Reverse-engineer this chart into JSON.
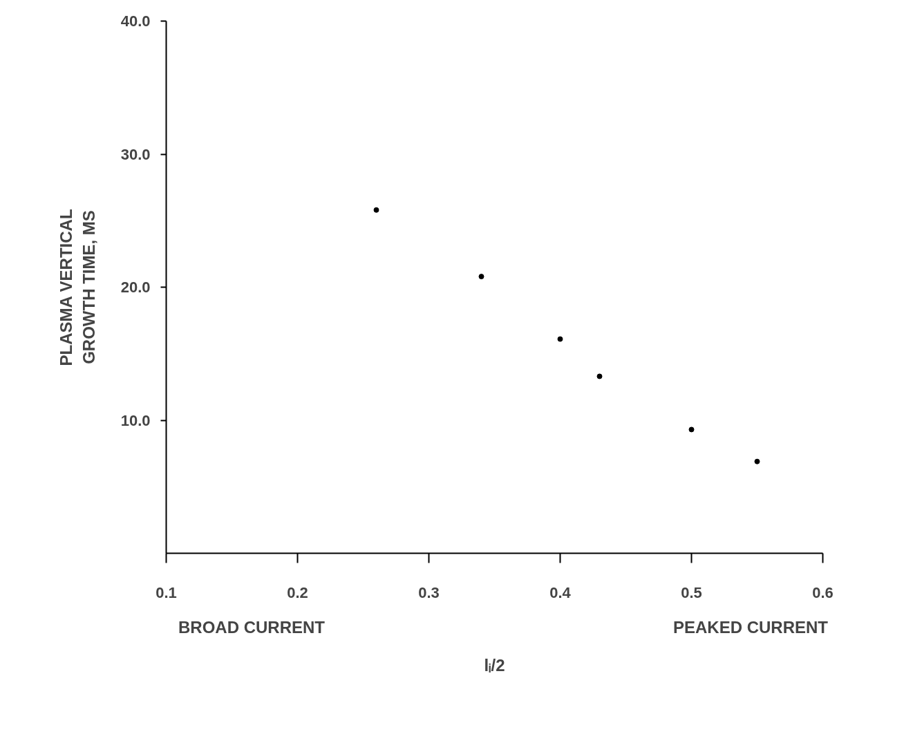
{
  "chart_data": {
    "type": "scatter",
    "xlabel": "lᵢ/2",
    "ylabel": "PLASMA VERTICAL\nGROWTH TIME, MS",
    "x": [
      0.26,
      0.34,
      0.4,
      0.43,
      0.5,
      0.55
    ],
    "values": [
      25.8,
      20.8,
      16.1,
      13.3,
      9.3,
      6.9
    ],
    "color": "#000000",
    "marker": "circle",
    "xlim": [
      0.1,
      0.6
    ],
    "ylim": [
      0,
      40
    ],
    "xticks": [
      0.1,
      0.2,
      0.3,
      0.4,
      0.5,
      0.6
    ],
    "yticks": [
      {
        "value": 10,
        "label": "10.0"
      },
      {
        "value": 20,
        "label": "20.0"
      },
      {
        "value": 30,
        "label": "30.0"
      },
      {
        "value": 40,
        "label": "40.0"
      }
    ],
    "grid": false,
    "annotations": [
      "BROAD CURRENT",
      "PEAKED CURRENT"
    ]
  }
}
